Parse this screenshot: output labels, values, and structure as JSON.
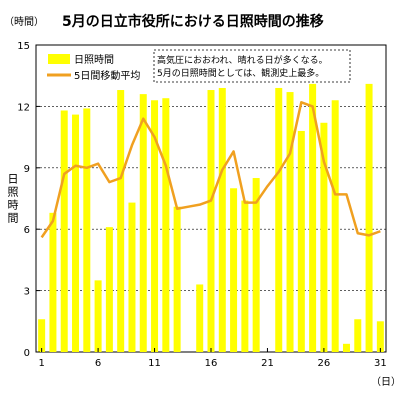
{
  "chart_data": {
    "type": "bar+line",
    "title": "5月の日立市役所における日照時間の推移",
    "y_unit_label": "（時間）",
    "ylabel": "日照時間",
    "x_unit_label": "（日）",
    "ylim": [
      0,
      15
    ],
    "yticks": [
      "0",
      "3",
      "6",
      "9",
      "12",
      "15"
    ],
    "xticks": [
      "1",
      "6",
      "11",
      "16",
      "21",
      "26",
      "31"
    ],
    "x": [
      1,
      2,
      3,
      4,
      5,
      6,
      7,
      8,
      9,
      10,
      11,
      12,
      13,
      14,
      15,
      16,
      17,
      18,
      19,
      20,
      21,
      22,
      23,
      24,
      25,
      26,
      27,
      28,
      29,
      30,
      31
    ],
    "series": [
      {
        "name": "日照時間",
        "kind": "bar",
        "color": "#ffff00",
        "values": [
          1.6,
          6.8,
          11.8,
          11.6,
          11.9,
          3.5,
          6.1,
          12.8,
          7.3,
          12.6,
          12.3,
          12.4,
          7.1,
          0.0,
          3.3,
          12.8,
          12.9,
          8.0,
          7.4,
          8.5,
          0.0,
          12.9,
          12.7,
          10.8,
          13.1,
          11.2,
          12.3,
          0.4,
          1.6,
          13.1,
          1.5
        ]
      },
      {
        "name": "5日間移動平均",
        "kind": "line",
        "color": "#f0a020",
        "values": [
          5.6,
          6.4,
          8.7,
          9.1,
          9.0,
          9.2,
          8.3,
          8.5,
          10.1,
          11.4,
          10.5,
          9.1,
          7.0,
          7.1,
          7.2,
          7.4,
          8.9,
          9.8,
          7.3,
          7.3,
          8.1,
          8.8,
          9.7,
          12.2,
          12.0,
          9.3,
          7.7,
          7.7,
          5.8,
          5.7,
          5.9
        ]
      }
    ],
    "grid": "horizontal dashed",
    "legend": "top-left",
    "note": [
      "高気圧におおわれ、晴れる日が多くなる。",
      "5月の日照時間としては、観測史上最多。"
    ]
  }
}
